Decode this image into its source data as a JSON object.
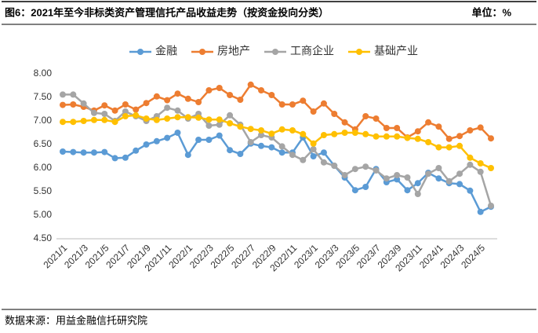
{
  "chart_data": {
    "type": "line",
    "title": "图6：2021年至今非标类资产管理信托产品收益走势（按资金投向分类）",
    "unit_label": "单位：%",
    "source": "数据来源：用益金融信托研究院",
    "categories": [
      "2021/1",
      null,
      "2021/3",
      null,
      "2021/5",
      null,
      "2021/7",
      null,
      "2021/9",
      null,
      "2021/11",
      null,
      "2022/1",
      null,
      "2022/3",
      null,
      "2022/5",
      null,
      "2022/7",
      null,
      "2022/9",
      null,
      "2022/11",
      null,
      "2023/1",
      null,
      "2023/3",
      null,
      "2023/5",
      null,
      "2023/7",
      null,
      "2023/9",
      null,
      "2023/11",
      null,
      "2024/1",
      null,
      "2024/3",
      null,
      "2024/5",
      null
    ],
    "series": [
      {
        "name": "金融",
        "color": "#5b9bd5",
        "values": [
          6.35,
          6.34,
          6.33,
          6.33,
          6.34,
          6.21,
          6.22,
          6.37,
          6.5,
          6.57,
          6.64,
          6.75,
          6.28,
          6.6,
          6.6,
          6.69,
          6.38,
          6.3,
          6.52,
          6.47,
          6.44,
          6.33,
          6.33,
          6.65,
          6.25,
          6.33,
          6.05,
          5.8,
          5.53,
          5.6,
          5.98,
          5.7,
          5.76,
          5.53,
          5.68,
          5.9,
          5.78,
          5.68,
          5.66,
          5.52,
          5.07,
          5.18
        ]
      },
      {
        "name": "房地产",
        "color": "#ed7d31",
        "values": [
          7.34,
          7.35,
          7.3,
          7.22,
          7.33,
          7.22,
          7.35,
          7.24,
          7.38,
          7.52,
          7.44,
          7.58,
          7.47,
          7.4,
          7.65,
          7.7,
          7.55,
          7.45,
          7.77,
          7.65,
          7.55,
          7.35,
          7.35,
          7.43,
          7.2,
          7.37,
          7.15,
          6.97,
          6.82,
          7.1,
          7.05,
          6.85,
          6.85,
          6.65,
          6.78,
          6.97,
          6.88,
          6.62,
          6.68,
          6.8,
          6.86,
          6.63
        ]
      },
      {
        "name": "工商企业",
        "color": "#a5a5a5",
        "values": [
          7.56,
          7.56,
          7.37,
          7.17,
          7.15,
          7.0,
          7.2,
          7.1,
          7.0,
          7.1,
          7.28,
          7.22,
          7.05,
          7.15,
          6.9,
          6.92,
          7.12,
          6.92,
          6.55,
          6.7,
          6.65,
          6.46,
          6.28,
          6.17,
          6.4,
          6.12,
          6.05,
          5.85,
          5.98,
          6.03,
          5.95,
          5.78,
          5.85,
          5.8,
          5.45,
          5.88,
          6.0,
          5.72,
          5.88,
          6.07,
          5.92,
          5.2
        ]
      },
      {
        "name": "基础产业",
        "color": "#ffc000",
        "values": [
          6.98,
          6.98,
          7.0,
          7.02,
          7.02,
          6.98,
          7.1,
          7.12,
          7.05,
          7.02,
          7.05,
          7.08,
          7.08,
          7.07,
          7.03,
          7.03,
          6.95,
          6.88,
          6.83,
          6.8,
          6.73,
          6.82,
          6.8,
          6.72,
          6.52,
          6.7,
          6.72,
          6.75,
          6.75,
          6.72,
          6.67,
          6.67,
          6.67,
          6.64,
          6.62,
          6.55,
          6.44,
          6.44,
          6.47,
          6.22,
          6.1,
          6.0
        ]
      }
    ],
    "ylim": [
      4.5,
      8.0
    ],
    "yticks": [
      {
        "value": 4.5,
        "label": "4.50"
      },
      {
        "value": 5,
        "label": "5.00"
      },
      {
        "value": 5.5,
        "label": "5.50"
      },
      {
        "value": 6,
        "label": "6.00"
      },
      {
        "value": 6.5,
        "label": "6.50"
      },
      {
        "value": 7,
        "label": "7.00"
      },
      {
        "value": 7.5,
        "label": "7.50"
      },
      {
        "value": 8,
        "label": "8.00"
      }
    ],
    "grid": false,
    "legend": "top"
  }
}
